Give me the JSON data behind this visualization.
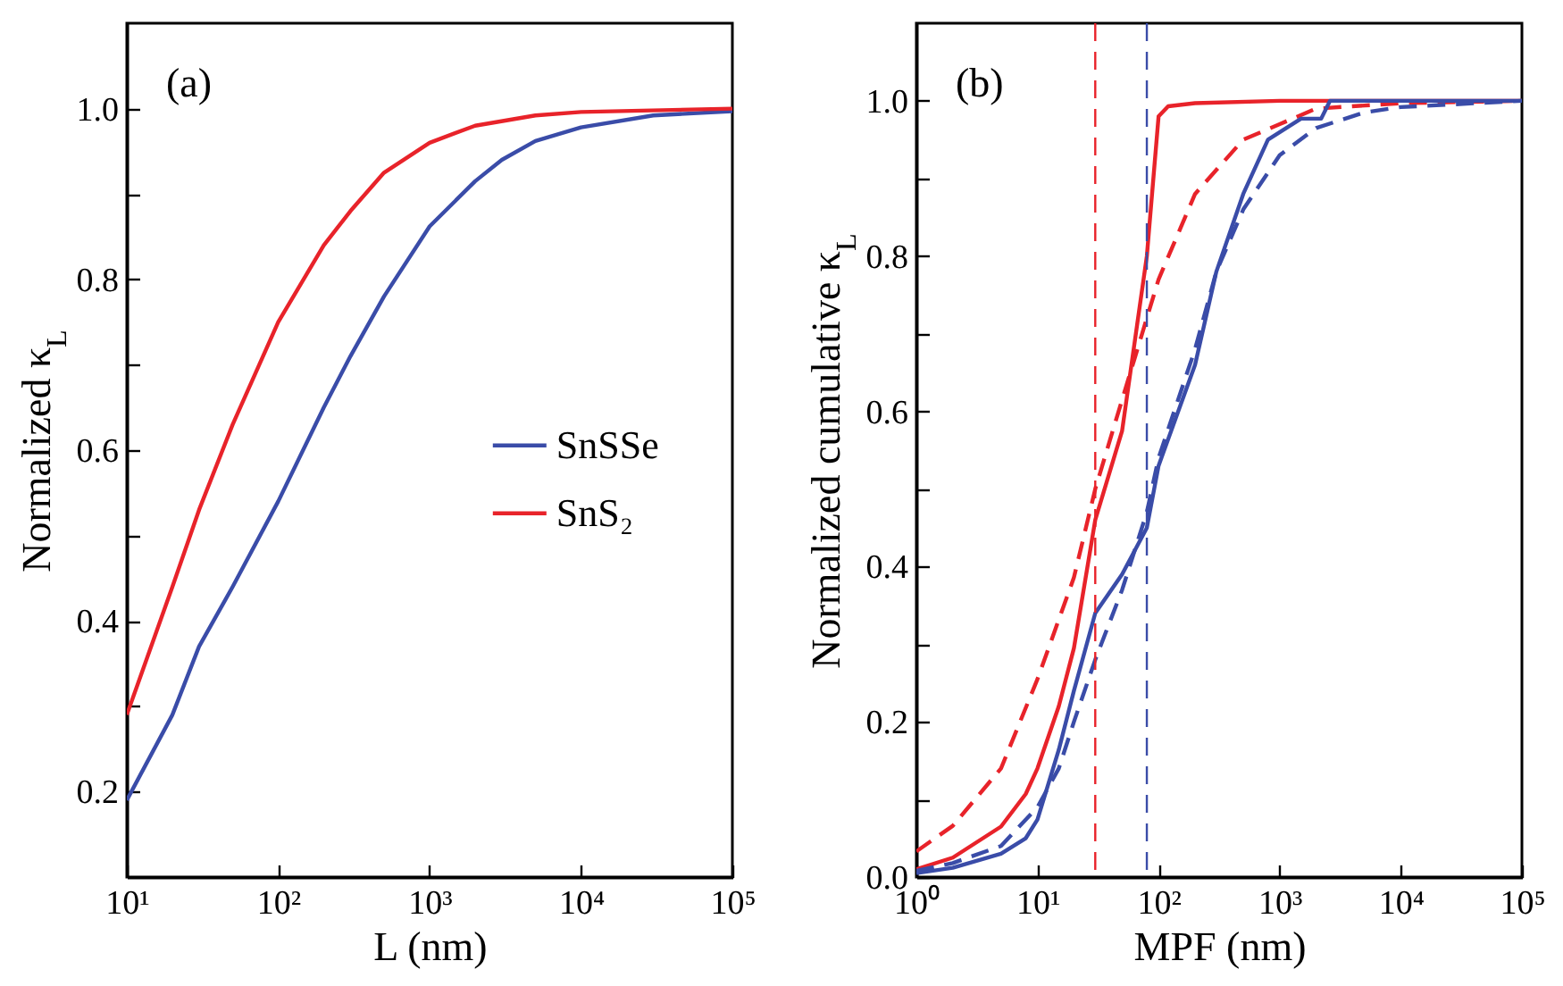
{
  "chart_data": [
    {
      "type": "line",
      "xlabel": "L (nm)",
      "ylabel": "Normalized κ$_{L}$",
      "log": "x",
      "xlim": [
        10,
        100000
      ],
      "ylim": [
        0.1,
        1.1
      ],
      "xticks": [
        {
          "value": 10,
          "label": "10¹"
        },
        {
          "value": 100,
          "label": "10²"
        },
        {
          "value": 1000,
          "label": "10³"
        },
        {
          "value": 10000,
          "label": "10⁴"
        },
        {
          "value": 100000,
          "label": "10⁵"
        }
      ],
      "yticks": [
        0.2,
        {
          "value": 0.3,
          "label": null
        },
        0.4,
        {
          "value": 0.5,
          "label": null
        },
        0.6,
        {
          "value": 0.7,
          "label": null
        },
        0.8,
        {
          "value": 0.9,
          "label": null
        },
        {
          "value": 1,
          "label": "1.0"
        }
      ],
      "grid": false,
      "legend": "right",
      "annotations": [
        "(a)"
      ],
      "series": [
        {
          "name": "SnSSe",
          "color": "#3a4ca8",
          "line_style": "solid",
          "x": [
            10,
            20,
            30,
            50,
            100,
            200,
            300,
            500,
            1000,
            2000,
            3000,
            5000,
            10000,
            30000,
            100000
          ],
          "values": [
            0.19,
            0.29,
            0.37,
            0.44,
            0.54,
            0.65,
            0.71,
            0.78,
            0.862,
            0.915,
            0.94,
            0.962,
            0.978,
            0.992,
            0.997
          ]
        },
        {
          "name": "SnS₂",
          "color": "#e8232a",
          "line_style": "solid",
          "x": [
            10,
            20,
            30,
            50,
            100,
            200,
            300,
            500,
            1000,
            2000,
            5000,
            10000,
            100000
          ],
          "values": [
            0.29,
            0.44,
            0.53,
            0.63,
            0.75,
            0.84,
            0.88,
            0.925,
            0.96,
            0.98,
            0.992,
            0.996,
            1.0
          ]
        }
      ]
    },
    {
      "type": "line",
      "xlabel": "MPF (nm)",
      "ylabel": "Normalized cumulative κ$_{L}$",
      "log": "x",
      "xlim": [
        1,
        100000
      ],
      "ylim": [
        0,
        1.1
      ],
      "xticks": [
        {
          "value": 1,
          "label": "10⁰"
        },
        {
          "value": 10,
          "label": "10¹"
        },
        {
          "value": 100,
          "label": "10²"
        },
        {
          "value": 1000,
          "label": "10³"
        },
        {
          "value": 10000,
          "label": "10⁴"
        },
        {
          "value": 100000,
          "label": "10⁵"
        }
      ],
      "yticks": [
        {
          "value": 0,
          "label": "0.0"
        },
        {
          "value": 0.1,
          "label": null
        },
        0.2,
        {
          "value": 0.3,
          "label": null
        },
        0.4,
        {
          "value": 0.5,
          "label": null
        },
        0.6,
        {
          "value": 0.7,
          "label": null
        },
        0.8,
        {
          "value": 0.9,
          "label": null
        },
        {
          "value": 1,
          "label": "1.0"
        }
      ],
      "grid": false,
      "annotations": [
        "(b)"
      ],
      "ref_lines": [
        {
          "axis": "x",
          "value": 30,
          "color": "#e8232a",
          "line_style": "dashed"
        },
        {
          "axis": "x",
          "value": 80,
          "color": "#3a4ca8",
          "line_style": "dashed"
        }
      ],
      "series": [
        {
          "color": "#e8232a",
          "line_style": "solid",
          "x": [
            1,
            2,
            5,
            8,
            10,
            15,
            20,
            30,
            50,
            80,
            100,
            120,
            200,
            1000,
            100000
          ],
          "values": [
            0.01,
            0.025,
            0.065,
            0.107,
            0.14,
            0.22,
            0.295,
            0.46,
            0.575,
            0.8,
            0.98,
            0.993,
            0.997,
            1.0,
            1.0
          ]
        },
        {
          "color": "#e8232a",
          "line_style": "dashed",
          "x": [
            1,
            2,
            5,
            10,
            20,
            30,
            50,
            100,
            200,
            500,
            1000,
            2000,
            10000,
            100000
          ],
          "values": [
            0.033,
            0.066,
            0.14,
            0.255,
            0.386,
            0.5,
            0.615,
            0.77,
            0.88,
            0.95,
            0.97,
            0.99,
            0.997,
            1.0
          ]
        },
        {
          "color": "#3a4ca8",
          "line_style": "solid",
          "x": [
            1,
            2,
            5,
            8,
            10,
            15,
            20,
            30,
            50,
            80,
            100,
            200,
            300,
            500,
            800,
            1500,
            2200,
            2600,
            100000
          ],
          "values": [
            0.005,
            0.012,
            0.03,
            0.05,
            0.074,
            0.164,
            0.24,
            0.34,
            0.39,
            0.45,
            0.53,
            0.66,
            0.78,
            0.88,
            0.95,
            0.977,
            0.977,
            1.0,
            1.0
          ]
        },
        {
          "color": "#3a4ca8",
          "line_style": "dashed",
          "x": [
            1,
            2,
            5,
            10,
            15,
            20,
            30,
            50,
            80,
            100,
            200,
            300,
            500,
            1000,
            2000,
            5000,
            10000,
            100000
          ],
          "values": [
            0.008,
            0.018,
            0.04,
            0.09,
            0.14,
            0.2,
            0.28,
            0.37,
            0.47,
            0.54,
            0.68,
            0.78,
            0.86,
            0.93,
            0.965,
            0.985,
            0.992,
            1.0
          ]
        }
      ]
    }
  ]
}
